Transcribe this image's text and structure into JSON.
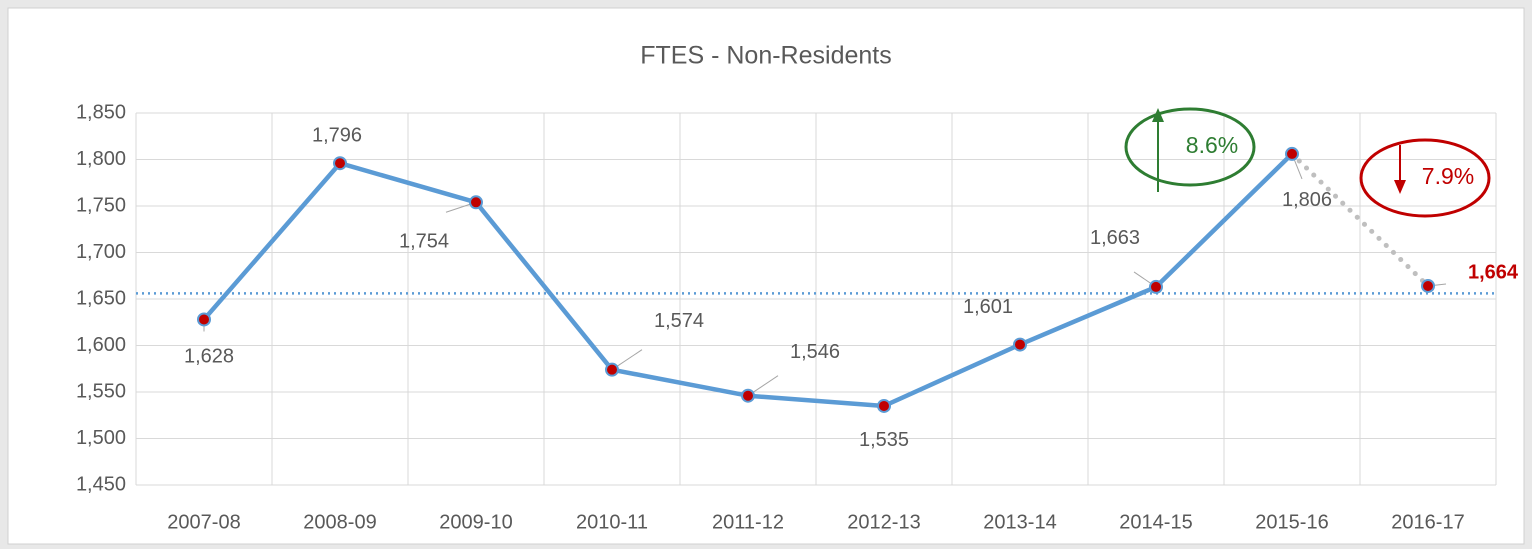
{
  "chart_data": {
    "type": "line",
    "title": "FTES - Non-Residents",
    "categories": [
      "2007-08",
      "2008-09",
      "2009-10",
      "2010-11",
      "2011-12",
      "2012-13",
      "2013-14",
      "2014-15",
      "2015-16",
      "2016-17"
    ],
    "series": [
      {
        "name": "FTES",
        "color": "#5b9bd5",
        "values": [
          1628,
          1796,
          1754,
          1574,
          1546,
          1535,
          1601,
          1663,
          1806,
          1664
        ],
        "value_labels": [
          "1,628",
          "1,796",
          "1,754",
          "1,574",
          "1,546",
          "1,535",
          "1,601",
          "1,663",
          "1,806",
          "1,664"
        ]
      }
    ],
    "marker_color": "#c00000",
    "reference_line": {
      "value": 1656,
      "color": "#5b9bd5"
    },
    "ylim": [
      1450,
      1850
    ],
    "yticks": [
      {
        "value": 1450,
        "label": "1,450"
      },
      {
        "value": 1500,
        "label": "1,500"
      },
      {
        "value": 1550,
        "label": "1,550"
      },
      {
        "value": 1600,
        "label": "1,600"
      },
      {
        "value": 1650,
        "label": "1,650"
      },
      {
        "value": 1700,
        "label": "1,700"
      },
      {
        "value": 1750,
        "label": "1,750"
      },
      {
        "value": 1800,
        "label": "1,800"
      },
      {
        "value": 1850,
        "label": "1,850"
      }
    ],
    "grid": true,
    "annotations": [
      {
        "text": "8.6%",
        "color": "#2e7d32"
      },
      {
        "text": "7.9%",
        "color": "#c00000"
      }
    ]
  }
}
